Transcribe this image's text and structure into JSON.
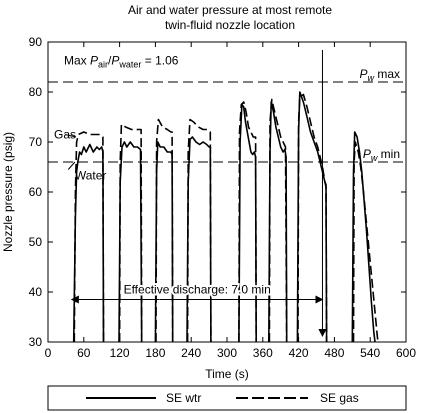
{
  "chart_data": {
    "type": "line",
    "title": "Air and water pressure at most remote",
    "subtitle": "twin-fluid nozzle location",
    "xlabel": "Time (s)",
    "ylabel": "Nozzle pressure (psig)",
    "xlim": [
      0,
      600
    ],
    "ylim": [
      30,
      90
    ],
    "xticks": [
      0,
      60,
      120,
      180,
      240,
      300,
      360,
      420,
      480,
      540,
      600
    ],
    "yticks": [
      30,
      40,
      50,
      60,
      70,
      80,
      90
    ],
    "grid": false,
    "legend_position": "bottom",
    "series": [
      {
        "name": "SE wtr",
        "style": "solid",
        "segments": [
          [
            [
              43,
              30
            ],
            [
              46,
              55
            ],
            [
              48,
              64
            ],
            [
              50,
              66
            ],
            [
              53,
              68
            ],
            [
              56,
              67.5
            ],
            [
              60,
              69
            ],
            [
              64,
              68
            ],
            [
              70,
              69.5
            ],
            [
              76,
              68
            ],
            [
              82,
              69
            ],
            [
              86,
              68.5
            ],
            [
              90,
              69
            ],
            [
              92,
              68
            ],
            [
              93,
              30
            ]
          ],
          [
            [
              119,
              30
            ],
            [
              121,
              62
            ],
            [
              124,
              69
            ],
            [
              128,
              70
            ],
            [
              132,
              69
            ],
            [
              138,
              70
            ],
            [
              144,
              69
            ],
            [
              150,
              69
            ],
            [
              155,
              68.5
            ],
            [
              157,
              30
            ]
          ],
          [
            [
              180,
              30
            ],
            [
              182,
              64
            ],
            [
              184,
              70
            ],
            [
              188,
              69
            ],
            [
              194,
              69
            ],
            [
              200,
              68
            ],
            [
              206,
              68
            ],
            [
              208,
              67.5
            ],
            [
              209,
              30
            ]
          ],
          [
            [
              233,
              30
            ],
            [
              235,
              62
            ],
            [
              238,
              70.5
            ],
            [
              242,
              71
            ],
            [
              248,
              70
            ],
            [
              254,
              69.5
            ],
            [
              260,
              70
            ],
            [
              266,
              69.5
            ],
            [
              270,
              69
            ],
            [
              272,
              69
            ],
            [
              273,
              30
            ]
          ],
          [
            [
              320,
              30
            ],
            [
              322,
              70
            ],
            [
              325,
              77.5
            ],
            [
              328,
              77
            ],
            [
              331,
              74
            ],
            [
              334,
              72
            ],
            [
              337,
              70
            ],
            [
              340,
              68
            ],
            [
              343,
              67.5
            ],
            [
              346,
              68
            ],
            [
              348,
              67
            ],
            [
              349,
              30
            ]
          ],
          [
            [
              370,
              30
            ],
            [
              372,
              68
            ],
            [
              374,
              78
            ],
            [
              378,
              76
            ],
            [
              382,
              73
            ],
            [
              386,
              71
            ],
            [
              390,
              69
            ],
            [
              394,
              68
            ],
            [
              397,
              68.5
            ],
            [
              399,
              67
            ],
            [
              400,
              30
            ]
          ],
          [
            [
              418,
              30
            ],
            [
              420,
              72
            ],
            [
              422,
              80
            ],
            [
              428,
              78
            ],
            [
              434,
              75
            ],
            [
              440,
              72
            ],
            [
              446,
              70
            ],
            [
              452,
              68
            ],
            [
              456,
              66
            ],
            [
              460,
              64
            ],
            [
              464,
              62
            ],
            [
              466,
              61.5
            ],
            [
              467,
              30
            ]
          ],
          [
            [
              510,
              30
            ],
            [
              512,
              64
            ],
            [
              514,
              72
            ],
            [
              518,
              71
            ],
            [
              522,
              68
            ],
            [
              526,
              64
            ],
            [
              530,
              58
            ],
            [
              534,
              52
            ],
            [
              538,
              45
            ],
            [
              542,
              38
            ],
            [
              546,
              32
            ],
            [
              548,
              30
            ]
          ]
        ]
      },
      {
        "name": "SE gas",
        "style": "dashed",
        "segments": [
          [
            [
              44,
              30
            ],
            [
              46,
              60
            ],
            [
              48,
              70
            ],
            [
              51,
              71.5
            ],
            [
              60,
              72
            ],
            [
              70,
              71.5
            ],
            [
              80,
              71.5
            ],
            [
              88,
              71.5
            ],
            [
              92,
              71
            ],
            [
              93,
              30
            ]
          ],
          [
            [
              120,
              30
            ],
            [
              121,
              66
            ],
            [
              123,
              73.5
            ],
            [
              130,
              73
            ],
            [
              140,
              72.5
            ],
            [
              150,
              72.5
            ],
            [
              156,
              72.5
            ],
            [
              157,
              30
            ]
          ],
          [
            [
              181,
              30
            ],
            [
              182,
              70
            ],
            [
              185,
              74.5
            ],
            [
              192,
              73
            ],
            [
              200,
              72.5
            ],
            [
              206,
              72
            ],
            [
              208,
              72
            ],
            [
              209,
              30
            ]
          ],
          [
            [
              234,
              30
            ],
            [
              235,
              68
            ],
            [
              238,
              74.5
            ],
            [
              244,
              74
            ],
            [
              252,
              73
            ],
            [
              260,
              72.5
            ],
            [
              268,
              72.5
            ],
            [
              272,
              72
            ],
            [
              273,
              30
            ]
          ],
          [
            [
              320,
              30
            ],
            [
              321,
              72
            ],
            [
              324,
              77.5
            ],
            [
              328,
              78
            ],
            [
              332,
              76
            ],
            [
              336,
              73
            ],
            [
              340,
              72
            ],
            [
              344,
              71
            ],
            [
              348,
              71
            ],
            [
              349,
              30
            ]
          ],
          [
            [
              371,
              30
            ],
            [
              372,
              74
            ],
            [
              375,
              78.5
            ],
            [
              378,
              77
            ],
            [
              382,
              75
            ],
            [
              386,
              73
            ],
            [
              390,
              71
            ],
            [
              394,
              70
            ],
            [
              398,
              69
            ],
            [
              400,
              30
            ]
          ],
          [
            [
              419,
              30
            ],
            [
              420,
              74
            ],
            [
              422,
              79
            ],
            [
              428,
              79.5
            ],
            [
              434,
              77
            ],
            [
              440,
              74
            ],
            [
              446,
              71
            ],
            [
              452,
              69
            ],
            [
              456,
              67
            ],
            [
              460,
              65
            ],
            [
              464,
              62
            ],
            [
              466,
              61
            ],
            [
              467,
              30
            ]
          ],
          [
            [
              512,
              30
            ],
            [
              513,
              66
            ],
            [
              515,
              70
            ],
            [
              520,
              68
            ],
            [
              524,
              65
            ],
            [
              528,
              61
            ],
            [
              532,
              56
            ],
            [
              536,
              51
            ],
            [
              540,
              46
            ],
            [
              544,
              41
            ],
            [
              548,
              36
            ],
            [
              552,
              31
            ],
            [
              553,
              30
            ]
          ]
        ]
      }
    ],
    "reference_lines": [
      {
        "y": 82,
        "label_pre": "P",
        "label_sub": "w",
        "label_post": " max"
      },
      {
        "y": 66,
        "label_pre": "P",
        "label_sub": "w",
        "label_post": " min"
      }
    ],
    "annotations": {
      "ratio": {
        "text": "Max P",
        "sub1": "air",
        "mid": "/P",
        "sub2": "water",
        "post": " = 1.06"
      },
      "gas_label": "Gas",
      "water_label": "Water",
      "discharge_label": "Effective discharge: 7.0 min",
      "discharge_range": [
        40,
        460
      ],
      "discharge_y": 38.5,
      "marker_x": 460
    },
    "legend": [
      {
        "label": "SE wtr",
        "style": "solid"
      },
      {
        "label": "SE gas",
        "style": "dashed"
      }
    ]
  }
}
